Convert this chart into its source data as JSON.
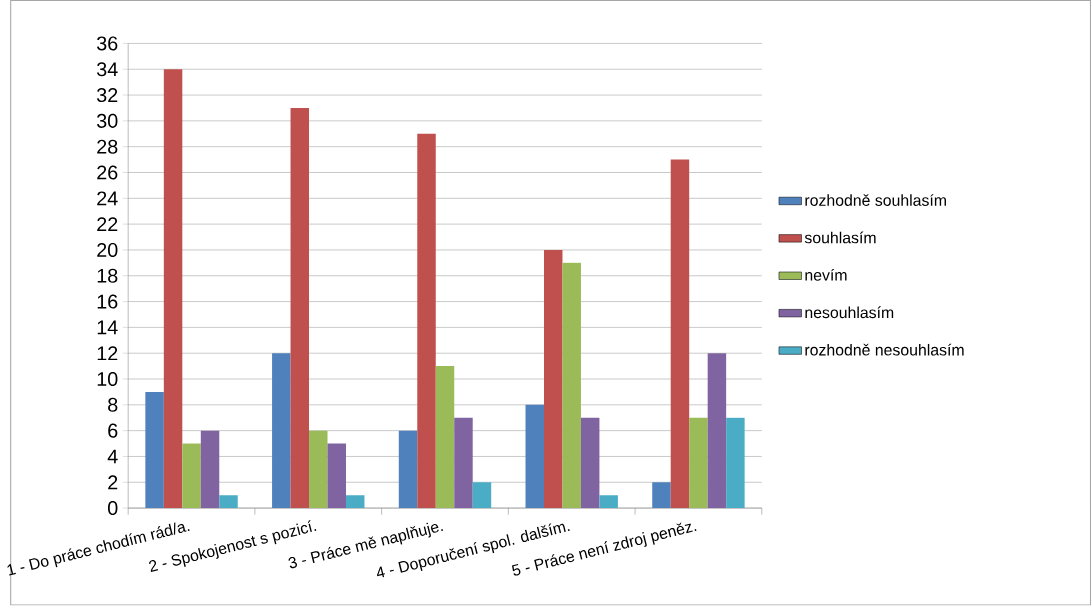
{
  "chart_data": {
    "type": "bar",
    "categories": [
      "1 - Do práce chodím rád/a.",
      "2 - Spokojenost s pozicí.",
      "3 - Práce mě naplňuje.",
      "4 - Doporučení spol. dalším.",
      "5 - Práce není zdroj peněz."
    ],
    "series": [
      {
        "name": "rozhodně souhlasím",
        "color": "#4f81bd",
        "values": [
          9,
          12,
          6,
          8,
          2
        ]
      },
      {
        "name": "souhlasím",
        "color": "#c0504d",
        "values": [
          34,
          31,
          29,
          20,
          27
        ]
      },
      {
        "name": "nevím",
        "color": "#9bbb59",
        "values": [
          5,
          6,
          11,
          19,
          7
        ]
      },
      {
        "name": "nesouhlasím",
        "color": "#8064a2",
        "values": [
          6,
          5,
          7,
          7,
          12
        ]
      },
      {
        "name": "rozhodně nesouhlasím",
        "color": "#4bacc6",
        "values": [
          1,
          1,
          2,
          1,
          7
        ]
      }
    ],
    "ylim": [
      0,
      36
    ],
    "yticks": [
      0,
      2,
      4,
      6,
      8,
      10,
      12,
      14,
      16,
      18,
      20,
      22,
      24,
      26,
      28,
      30,
      32,
      34,
      36
    ],
    "grid": "y",
    "legend": "right"
  }
}
